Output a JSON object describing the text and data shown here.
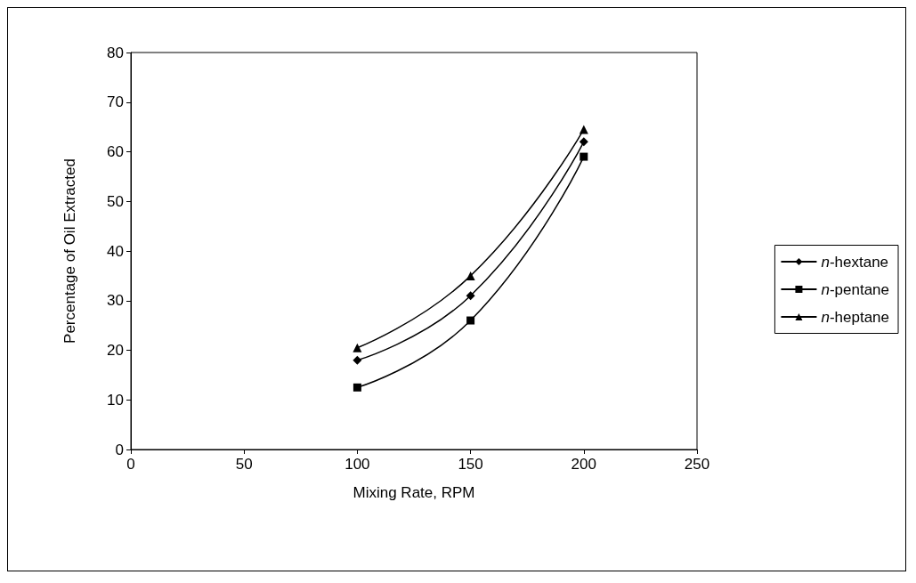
{
  "chart_data": {
    "type": "line",
    "xlabel": "Mixing Rate, RPM",
    "ylabel": "Percentage of Oil Extracted",
    "x": [
      100,
      150,
      200
    ],
    "series": [
      {
        "name": "n-hextane",
        "color": "#000000",
        "marker": "diamond",
        "values": [
          18,
          31,
          62
        ]
      },
      {
        "name": "n-pentane",
        "color": "#000000",
        "marker": "square",
        "values": [
          12.5,
          26,
          59
        ]
      },
      {
        "name": "n-heptane",
        "color": "#000000",
        "marker": "triangle",
        "values": [
          20.5,
          35,
          64.5
        ]
      }
    ],
    "xlim": [
      0,
      250
    ],
    "xticks": [
      0,
      50,
      100,
      150,
      200,
      250
    ],
    "ylim": [
      0,
      80
    ],
    "yticks": [
      0,
      10,
      20,
      30,
      40,
      50,
      60,
      70,
      80
    ],
    "grid": false,
    "legend": "right",
    "line_style": "solid"
  }
}
